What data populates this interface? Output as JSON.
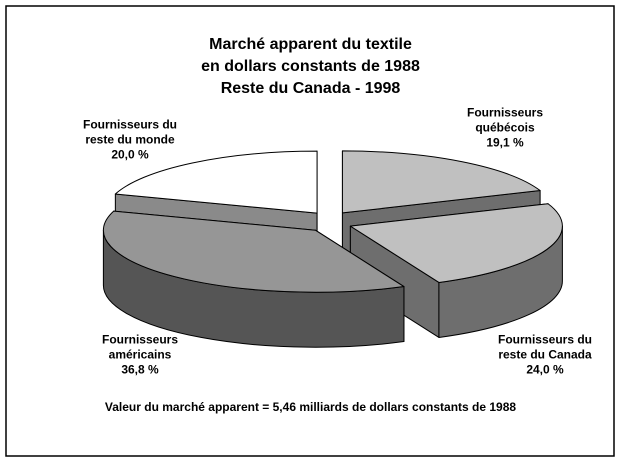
{
  "chart_data": {
    "type": "pie3d",
    "title": [
      "Marché apparent du textile",
      "en dollars constants de 1988",
      "Reste du Canada - 1998"
    ],
    "categories": [
      "Fournisseurs québécois",
      "Fournisseurs du reste du Canada",
      "Fournisseurs américains",
      "Fournisseurs du reste du monde"
    ],
    "values": [
      19.1,
      24.0,
      36.8,
      20.0
    ],
    "value_labels": [
      "19,1 %",
      "24,0 %",
      "36,8 %",
      "20,0 %"
    ],
    "colors": [
      "#c0c0c0",
      "#c0c0c0",
      "#969696",
      "#ffffff"
    ],
    "side_colors": [
      "#6e6e6e",
      "#6e6e6e",
      "#555555",
      "#8a8a8a"
    ],
    "annotation": "Valeur du marché apparent = 5,46 milliards de dollars constants de 1988"
  }
}
